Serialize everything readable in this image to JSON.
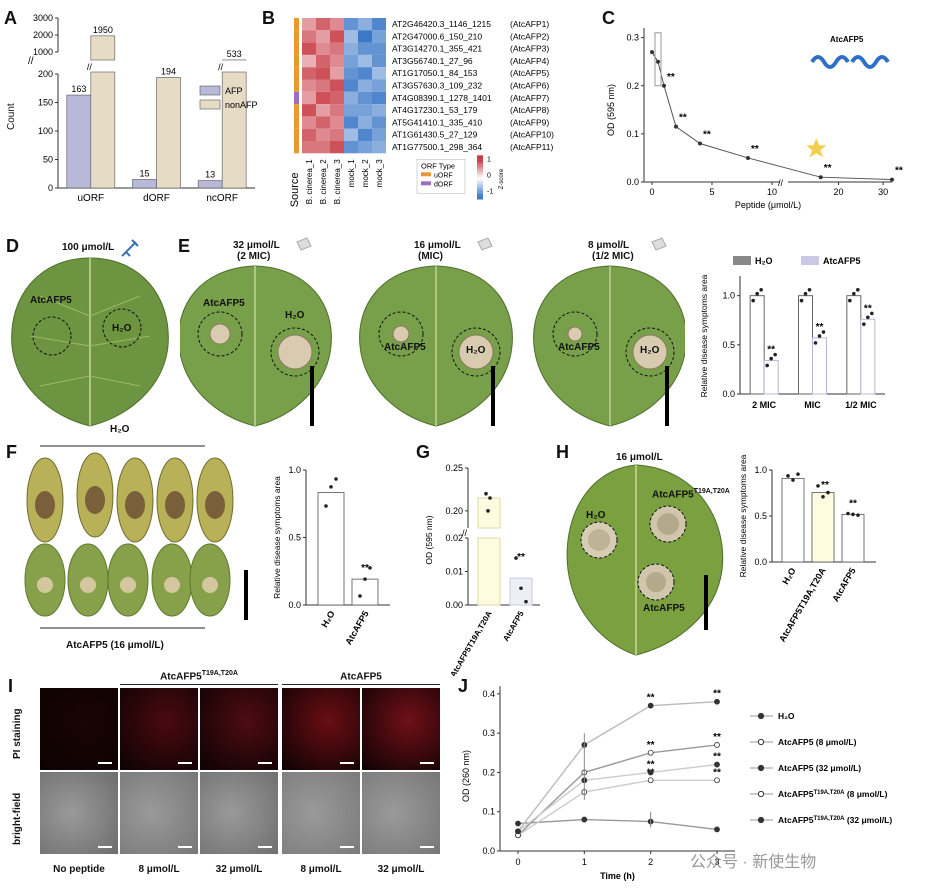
{
  "panels": {
    "A": "A",
    "B": "B",
    "C": "C",
    "D": "D",
    "E": "E",
    "F": "F",
    "G": "G",
    "H": "H",
    "I": "I",
    "J": "J"
  },
  "colors": {
    "afp": "#b8b9d9",
    "nonafp": "#e6dcc6",
    "uorf": "#e89a2c",
    "dorf": "#9b6fbd",
    "line": "#555555",
    "star": "#f4cf4e"
  },
  "panelA": {
    "ylabel": "Count",
    "legend": [
      "AFP",
      "nonAFP"
    ],
    "yticks_low": [
      "0",
      "50",
      "100",
      "150",
      "200"
    ],
    "yticks_high": [
      "1000",
      "2000",
      "3000"
    ],
    "chart_data": {
      "type": "bar",
      "categories": [
        "uORF",
        "dORF",
        "ncORF"
      ],
      "series": [
        {
          "name": "AFP",
          "values": [
            163,
            15,
            13
          ]
        },
        {
          "name": "nonAFP",
          "values": [
            1950,
            194,
            533
          ]
        }
      ],
      "ylabel": "Count"
    }
  },
  "panelB": {
    "rows": [
      "AT2G46420.3_1146_1215",
      "AT2G47000.6_150_210",
      "AT3G14270.1_355_421",
      "AT3G56740.1_27_96",
      "AT1G17050.1_84_153",
      "AT3G57630.3_109_232",
      "AT4G08390.1_1278_1401",
      "AT4G17230.1_53_179",
      "AT5G41410.1_335_410",
      "AT1G61430.5_27_129",
      "AT1G77500.1_298_364"
    ],
    "names": [
      "(AtcAFP1)",
      "(AtcAFP2)",
      "(AtcAFP3)",
      "(AtcAFP4)",
      "(AtcAFP5)",
      "(AtcAFP6)",
      "(AtcAFP7)",
      "(AtcAFP8)",
      "(AtcAFP9)",
      "(AtcAFP10)",
      "(AtcAFP11)"
    ],
    "columns": [
      "B. cinerea_1",
      "B. cinerea_2",
      "B. cinerea_3",
      "mock_1",
      "mock_2",
      "mock_3"
    ],
    "source": "Source",
    "legend_title": "ORF Type",
    "legend_items": [
      "uORF",
      "dORF"
    ],
    "scale_ticks": [
      "1",
      "0",
      "-1"
    ],
    "scale_label": "Z-score",
    "heat": [
      [
        0.5,
        0.8,
        0.6,
        -0.8,
        -0.6,
        -0.9
      ],
      [
        0.7,
        0.5,
        0.9,
        -0.5,
        -1.0,
        -0.7
      ],
      [
        0.9,
        0.6,
        0.7,
        -0.6,
        -0.8,
        -0.8
      ],
      [
        0.4,
        0.8,
        0.6,
        -0.7,
        -0.5,
        -0.8
      ],
      [
        0.8,
        0.9,
        0.5,
        -0.8,
        -0.9,
        -0.5
      ],
      [
        0.6,
        0.7,
        0.9,
        -0.9,
        -0.6,
        -0.7
      ],
      [
        0.5,
        0.9,
        0.8,
        -0.6,
        -0.8,
        -0.9
      ],
      [
        0.9,
        0.5,
        0.7,
        -0.7,
        -0.7,
        -0.6
      ],
      [
        0.6,
        0.8,
        0.6,
        -0.9,
        -0.6,
        -0.8
      ],
      [
        0.8,
        0.6,
        0.7,
        -0.5,
        -0.9,
        -0.7
      ],
      [
        0.7,
        0.7,
        0.9,
        -0.8,
        -0.7,
        -0.6
      ]
    ],
    "orf_types": [
      "u",
      "u",
      "u",
      "u",
      "u",
      "u",
      "d",
      "u",
      "u",
      "u",
      "u"
    ]
  },
  "panelC": {
    "ylabel": "OD (595 nm)",
    "xlabel": "Peptide (μmol/L)",
    "protein_label": "AtcAFP5",
    "yticks": [
      "0.0",
      "0.1",
      "0.2",
      "0.3"
    ],
    "xticks": [
      "0",
      "5",
      "10",
      "20",
      "30"
    ],
    "sig": "**",
    "chart_data": {
      "type": "line",
      "x": [
        0,
        0.5,
        1,
        2,
        4,
        8,
        16,
        32
      ],
      "y": [
        0.27,
        0.25,
        0.2,
        0.115,
        0.08,
        0.05,
        0.01,
        0.005
      ],
      "ylim": [
        0,
        0.32
      ]
    }
  },
  "panelD": {
    "conc": "100 μmol/L",
    "left": "AtcAFP5",
    "right": "H₂O"
  },
  "panelE": {
    "leaves": [
      {
        "conc": "32 μmol/L",
        "mic": "(2 MIC)",
        "a": "AtcAFP5",
        "b": "H₂O"
      },
      {
        "conc": "16 μmol/L",
        "mic": "(MIC)",
        "a": "AtcAFP5",
        "b": "H₂O"
      },
      {
        "conc": "8 μmol/L",
        "mic": "(1/2 MIC)",
        "a": "AtcAFP5",
        "b": "H₂O"
      }
    ],
    "legend": [
      "H₂O",
      "AtcAFP5"
    ],
    "ylabel": "Relative disease symptoms area",
    "yticks": [
      "0.0",
      "0.5",
      "1.0"
    ],
    "sig": "**",
    "chart_data": {
      "type": "bar",
      "categories": [
        "2 MIC",
        "MIC",
        "1/2 MIC"
      ],
      "series": [
        {
          "name": "H₂O",
          "values": [
            1.0,
            1.0,
            1.0
          ]
        },
        {
          "name": "AtcAFP5",
          "values": [
            0.34,
            0.57,
            0.76
          ]
        }
      ]
    }
  },
  "panelF": {
    "top": "H₂O",
    "bottom": "AtcAFP5 (16 μmol/L)",
    "ylabel": "Relative disease symptoms area",
    "yticks": [
      "0.0",
      "0.5",
      "1.0"
    ],
    "sig": "**",
    "chart_data": {
      "type": "bar",
      "categories": [
        "H₂O",
        "AtcAFP5"
      ],
      "values": [
        1.0,
        0.23
      ]
    }
  },
  "panelG": {
    "ylabel": "OD (595 nm)",
    "yticks_low": [
      "0.00",
      "0.01",
      "0.02"
    ],
    "yticks_high": [
      "0.20",
      "0.25"
    ],
    "sig": "**",
    "chart_data": {
      "type": "bar",
      "categories": [
        "AtcAFP5T19A,T20A",
        "AtcAFP5"
      ],
      "values": [
        0.215,
        0.008
      ]
    }
  },
  "panelH": {
    "conc": "16 μmol/L",
    "mut": "AtcAFP5",
    "mut_sup": "T19A,T20A",
    "water": "H₂O",
    "peptide": "AtcAFP5",
    "ylabel": "Relative disease symptoms area",
    "yticks": [
      "0.0",
      "0.5",
      "1.0"
    ],
    "sig": "**",
    "chart_data": {
      "type": "bar",
      "categories": [
        "H₂O",
        "AtcAFP5T19A,T20A",
        "AtcAFP5"
      ],
      "values": [
        1.0,
        0.83,
        0.57
      ]
    }
  },
  "panelI": {
    "rows": [
      "PI staining",
      "bright-field"
    ],
    "groups": [
      {
        "name": "AtcAFP5",
        "sup": "T19A,T20A"
      },
      {
        "name": "AtcAFP5",
        "sup": ""
      }
    ],
    "cols": [
      "No peptide",
      "8 μmol/L",
      "32 μmol/L",
      "8 μmol/L",
      "32 μmol/L"
    ]
  },
  "panelJ": {
    "ylabel": "OD (260 nm)",
    "xlabel": "Time (h)",
    "yticks": [
      "0.0",
      "0.1",
      "0.2",
      "0.3",
      "0.4"
    ],
    "xticks": [
      "0",
      "1",
      "2",
      "3"
    ],
    "sig": "**",
    "legend": [
      {
        "name": "H₂O",
        "sup": "",
        "tail": ""
      },
      {
        "name": "AtcAFP5 (8 μmol/L)",
        "sup": "",
        "tail": ""
      },
      {
        "name": "AtcAFP5 (32 μmol/L)",
        "sup": "",
        "tail": ""
      },
      {
        "name": "AtcAFP5",
        "sup": "T19A,T20A",
        "tail": " (8 μmol/L)"
      },
      {
        "name": "AtcAFP5",
        "sup": "T19A,T20A",
        "tail": " (32 μmol/L)"
      }
    ],
    "chart_data": {
      "type": "line",
      "x": [
        0,
        1,
        2,
        3
      ],
      "series": [
        {
          "name": "H₂O",
          "values": [
            0.07,
            0.08,
            0.075,
            0.055
          ]
        },
        {
          "name": "AtcAFP5 (8 μmol/L)",
          "values": [
            0.04,
            0.2,
            0.25,
            0.27
          ]
        },
        {
          "name": "AtcAFP5 (32 μmol/L)",
          "values": [
            0.05,
            0.27,
            0.37,
            0.38
          ]
        },
        {
          "name": "AtcAFP5T19A,T20A (8 μmol/L)",
          "values": [
            0.04,
            0.15,
            0.18,
            0.18
          ]
        },
        {
          "name": "AtcAFP5T19A,T20A (32 μmol/L)",
          "values": [
            0.05,
            0.18,
            0.2,
            0.22
          ]
        }
      ],
      "ylim": [
        0,
        0.42
      ]
    }
  },
  "watermark": "公众号 · 新使生物"
}
